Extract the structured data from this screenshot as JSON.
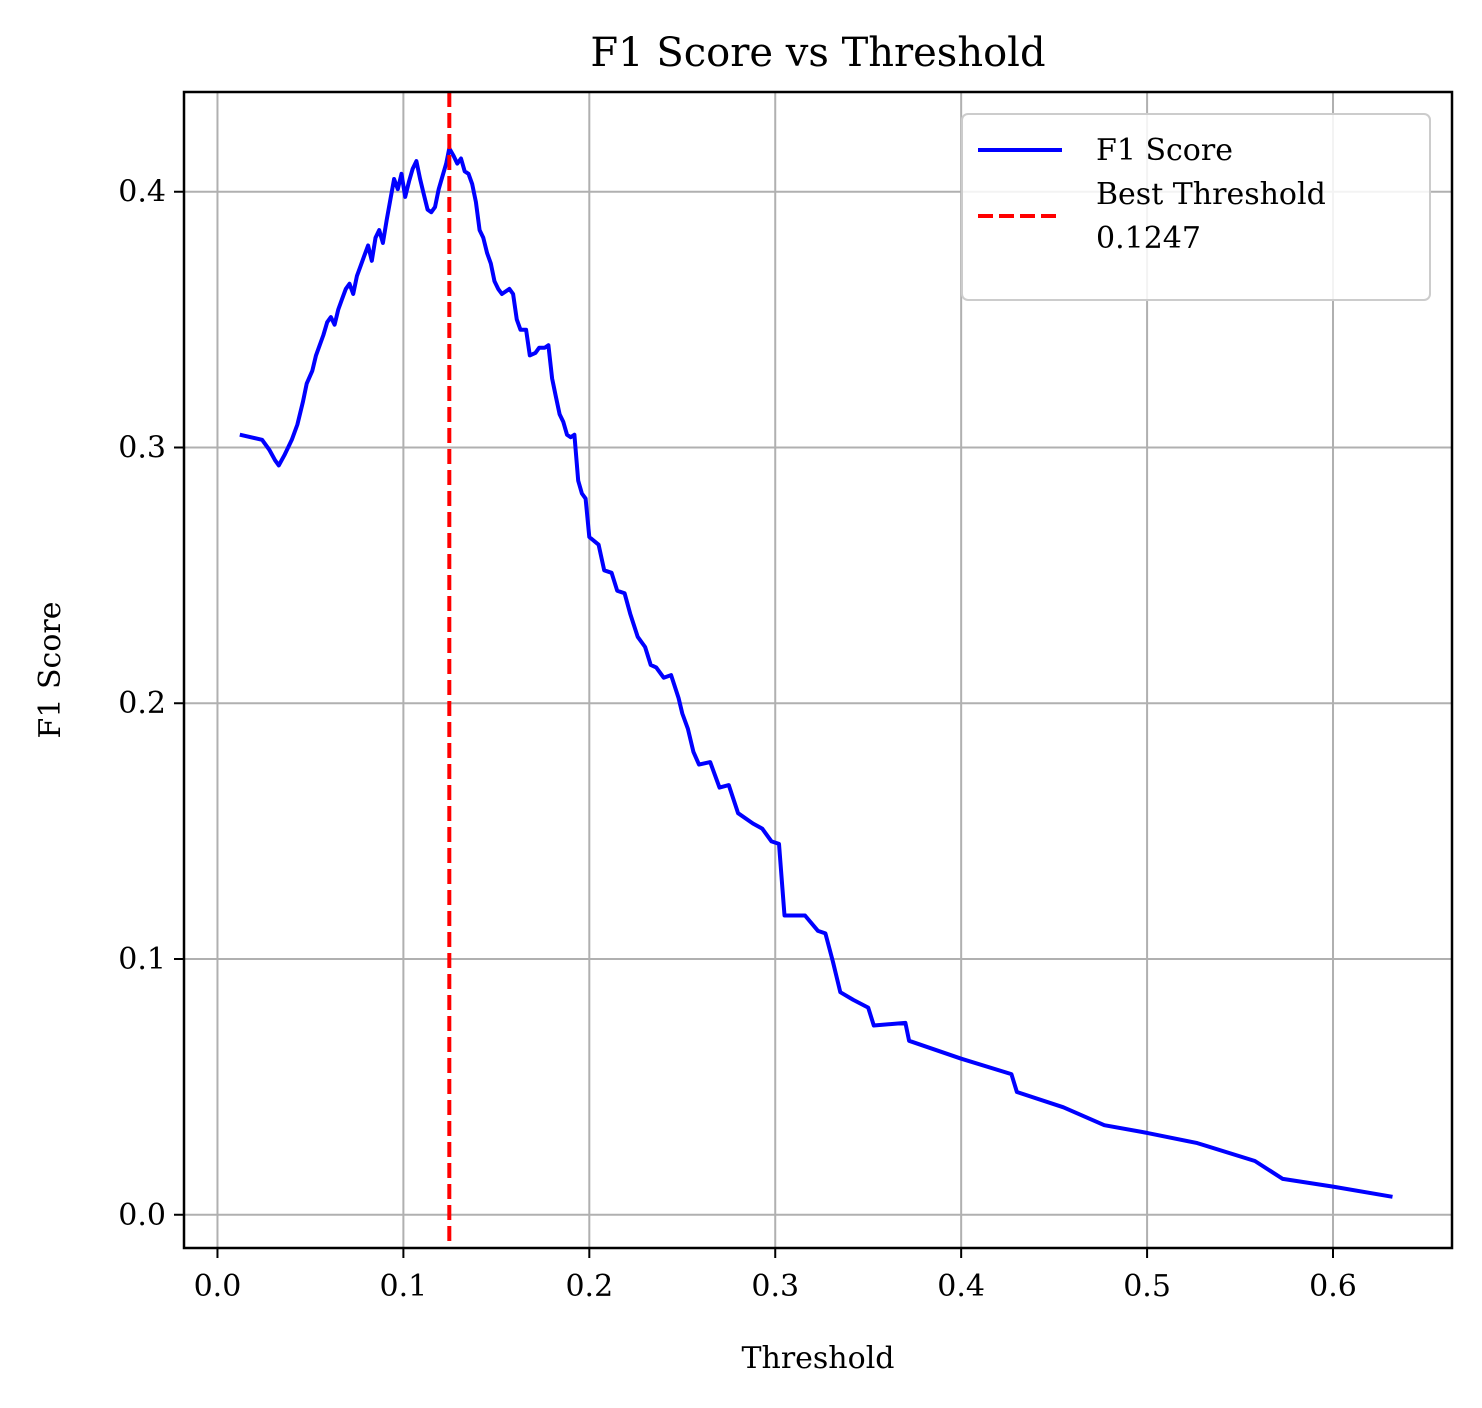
{
  "chart_data": {
    "type": "line",
    "title": "F1 Score vs Threshold",
    "xlabel": "Threshold",
    "ylabel": "F1 Score",
    "xlim": [
      -0.018,
      0.664
    ],
    "ylim": [
      -0.013,
      0.439
    ],
    "x_ticks": [
      0.0,
      0.1,
      0.2,
      0.3,
      0.4,
      0.5,
      0.6
    ],
    "x_tick_labels": [
      "0.0",
      "0.1",
      "0.2",
      "0.3",
      "0.4",
      "0.5",
      "0.6"
    ],
    "y_ticks": [
      0.0,
      0.1,
      0.2,
      0.3,
      0.4
    ],
    "y_tick_labels": [
      "0.0",
      "0.1",
      "0.2",
      "0.3",
      "0.4"
    ],
    "grid": true,
    "legend_position": "top-right",
    "series": [
      {
        "name": "F1 Score",
        "color": "#0000ff",
        "style": "solid",
        "points": [
          [
            0.012,
            0.305
          ],
          [
            0.024,
            0.303
          ],
          [
            0.028,
            0.299
          ],
          [
            0.031,
            0.295
          ],
          [
            0.033,
            0.293
          ],
          [
            0.036,
            0.297
          ],
          [
            0.04,
            0.303
          ],
          [
            0.043,
            0.309
          ],
          [
            0.046,
            0.318
          ],
          [
            0.048,
            0.325
          ],
          [
            0.051,
            0.33
          ],
          [
            0.053,
            0.336
          ],
          [
            0.055,
            0.34
          ],
          [
            0.057,
            0.344
          ],
          [
            0.059,
            0.349
          ],
          [
            0.061,
            0.351
          ],
          [
            0.063,
            0.348
          ],
          [
            0.065,
            0.354
          ],
          [
            0.067,
            0.358
          ],
          [
            0.069,
            0.362
          ],
          [
            0.071,
            0.364
          ],
          [
            0.073,
            0.36
          ],
          [
            0.075,
            0.367
          ],
          [
            0.077,
            0.371
          ],
          [
            0.079,
            0.375
          ],
          [
            0.081,
            0.379
          ],
          [
            0.083,
            0.373
          ],
          [
            0.085,
            0.382
          ],
          [
            0.087,
            0.385
          ],
          [
            0.089,
            0.38
          ],
          [
            0.091,
            0.389
          ],
          [
            0.093,
            0.397
          ],
          [
            0.095,
            0.405
          ],
          [
            0.097,
            0.401
          ],
          [
            0.099,
            0.407
          ],
          [
            0.101,
            0.398
          ],
          [
            0.103,
            0.404
          ],
          [
            0.105,
            0.409
          ],
          [
            0.107,
            0.412
          ],
          [
            0.109,
            0.405
          ],
          [
            0.111,
            0.399
          ],
          [
            0.113,
            0.393
          ],
          [
            0.115,
            0.392
          ],
          [
            0.117,
            0.394
          ],
          [
            0.119,
            0.401
          ],
          [
            0.121,
            0.406
          ],
          [
            0.123,
            0.411
          ],
          [
            0.1247,
            0.417
          ],
          [
            0.127,
            0.414
          ],
          [
            0.129,
            0.411
          ],
          [
            0.131,
            0.413
          ],
          [
            0.133,
            0.408
          ],
          [
            0.135,
            0.407
          ],
          [
            0.137,
            0.403
          ],
          [
            0.139,
            0.396
          ],
          [
            0.141,
            0.385
          ],
          [
            0.143,
            0.382
          ],
          [
            0.145,
            0.376
          ],
          [
            0.147,
            0.372
          ],
          [
            0.149,
            0.365
          ],
          [
            0.151,
            0.362
          ],
          [
            0.153,
            0.36
          ],
          [
            0.157,
            0.362
          ],
          [
            0.159,
            0.36
          ],
          [
            0.161,
            0.35
          ],
          [
            0.163,
            0.346
          ],
          [
            0.166,
            0.346
          ],
          [
            0.168,
            0.336
          ],
          [
            0.171,
            0.337
          ],
          [
            0.173,
            0.339
          ],
          [
            0.176,
            0.339
          ],
          [
            0.178,
            0.34
          ],
          [
            0.18,
            0.327
          ],
          [
            0.182,
            0.32
          ],
          [
            0.184,
            0.313
          ],
          [
            0.186,
            0.31
          ],
          [
            0.188,
            0.305
          ],
          [
            0.19,
            0.304
          ],
          [
            0.192,
            0.305
          ],
          [
            0.194,
            0.287
          ],
          [
            0.196,
            0.282
          ],
          [
            0.198,
            0.28
          ],
          [
            0.2,
            0.265
          ],
          [
            0.205,
            0.262
          ],
          [
            0.208,
            0.252
          ],
          [
            0.212,
            0.251
          ],
          [
            0.215,
            0.244
          ],
          [
            0.219,
            0.243
          ],
          [
            0.222,
            0.235
          ],
          [
            0.226,
            0.226
          ],
          [
            0.23,
            0.222
          ],
          [
            0.233,
            0.215
          ],
          [
            0.236,
            0.214
          ],
          [
            0.24,
            0.21
          ],
          [
            0.244,
            0.211
          ],
          [
            0.248,
            0.202
          ],
          [
            0.25,
            0.196
          ],
          [
            0.253,
            0.19
          ],
          [
            0.256,
            0.181
          ],
          [
            0.259,
            0.176
          ],
          [
            0.265,
            0.177
          ],
          [
            0.27,
            0.167
          ],
          [
            0.275,
            0.168
          ],
          [
            0.28,
            0.157
          ],
          [
            0.288,
            0.153
          ],
          [
            0.293,
            0.151
          ],
          [
            0.298,
            0.146
          ],
          [
            0.302,
            0.145
          ],
          [
            0.305,
            0.117
          ],
          [
            0.316,
            0.117
          ],
          [
            0.323,
            0.111
          ],
          [
            0.327,
            0.11
          ],
          [
            0.331,
            0.099
          ],
          [
            0.335,
            0.087
          ],
          [
            0.342,
            0.084
          ],
          [
            0.35,
            0.081
          ],
          [
            0.353,
            0.074
          ],
          [
            0.37,
            0.075
          ],
          [
            0.372,
            0.068
          ],
          [
            0.4,
            0.061
          ],
          [
            0.427,
            0.055
          ],
          [
            0.43,
            0.048
          ],
          [
            0.455,
            0.042
          ],
          [
            0.477,
            0.035
          ],
          [
            0.5,
            0.032
          ],
          [
            0.527,
            0.028
          ],
          [
            0.558,
            0.021
          ],
          [
            0.573,
            0.014
          ],
          [
            0.6,
            0.011
          ],
          [
            0.632,
            0.007
          ]
        ]
      },
      {
        "name": "Best Threshold\n0.1247",
        "color": "#ff0000",
        "style": "dashed",
        "x": 0.1247
      }
    ]
  }
}
